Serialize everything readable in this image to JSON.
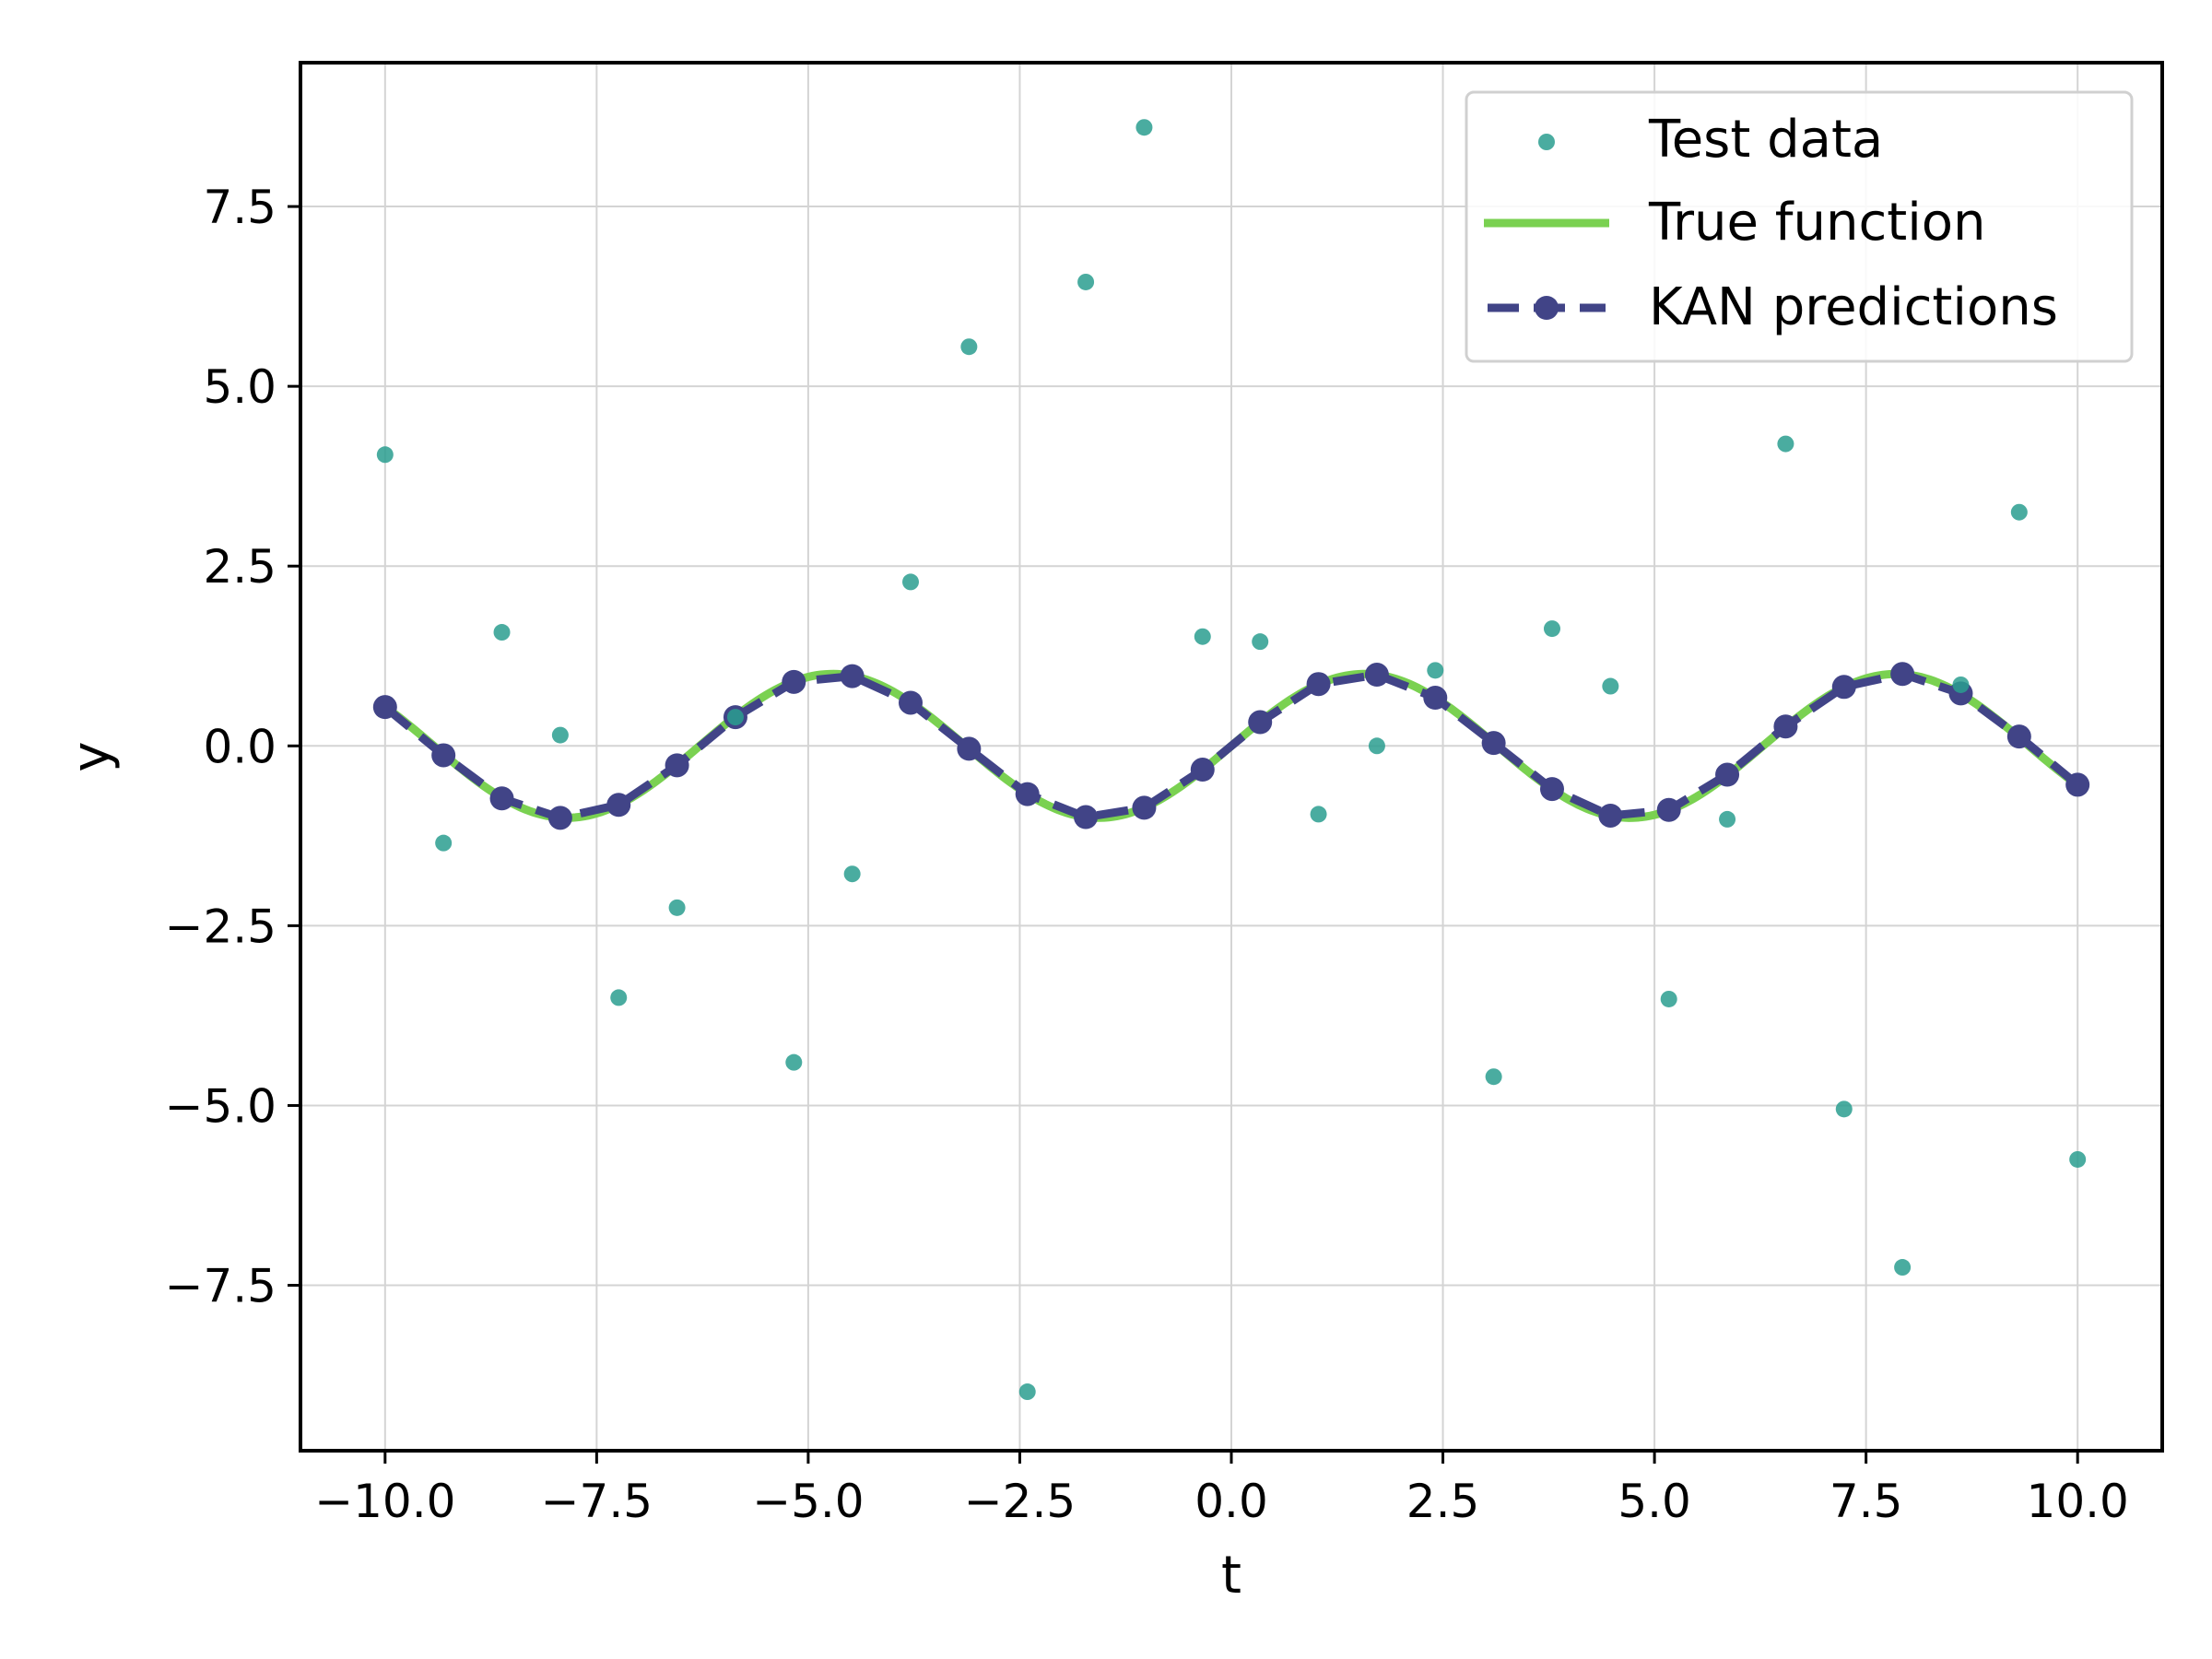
{
  "chart_data": {
    "type": "scatter",
    "title": "",
    "xlabel": "t",
    "ylabel": "y",
    "xlim": [
      -11,
      11
    ],
    "ylim": [
      -9.8,
      9.5
    ],
    "grid": true,
    "legend_position": "top-right",
    "xticks": [
      -10.0,
      -7.5,
      -5.0,
      -2.5,
      0.0,
      2.5,
      5.0,
      7.5,
      10.0
    ],
    "xtick_labels": [
      "−10.0",
      "−7.5",
      "−5.0",
      "−2.5",
      "0.0",
      "2.5",
      "5.0",
      "7.5",
      "10.0"
    ],
    "yticks": [
      7.5,
      5.0,
      2.5,
      0.0,
      -2.5,
      -5.0,
      -7.5
    ],
    "ytick_labels": [
      "7.5",
      "5.0",
      "2.5",
      "0.0",
      "−2.5",
      "−5.0",
      "−7.5"
    ],
    "series": [
      {
        "name": "Test data",
        "kind": "scatter",
        "color": "#2a9d8f",
        "x": [
          -10.0,
          -9.31,
          -8.62,
          -7.93,
          -7.24,
          -6.55,
          -5.86,
          -5.17,
          -4.48,
          -3.79,
          -3.1,
          -2.41,
          -1.72,
          -1.03,
          -0.34,
          0.34,
          1.03,
          1.72,
          2.41,
          3.1,
          3.79,
          4.48,
          5.17,
          5.86,
          6.55,
          7.24,
          7.93,
          8.62,
          9.31,
          10.0
        ],
        "y": [
          4.05,
          -1.35,
          1.58,
          0.15,
          -3.5,
          -2.25,
          0.4,
          -4.4,
          -1.78,
          2.28,
          5.55,
          -8.98,
          6.45,
          8.6,
          1.52,
          1.45,
          -0.95,
          0.0,
          1.05,
          -4.6,
          1.63,
          0.83,
          -3.52,
          -1.02,
          4.2,
          -5.05,
          -7.25,
          0.85,
          3.25,
          -5.75
        ]
      },
      {
        "name": "True function",
        "kind": "line",
        "color": "#7ad151",
        "function": "sin(t)",
        "x_range": [
          -10,
          10
        ]
      },
      {
        "name": "KAN predictions",
        "kind": "line-markers",
        "color": "#414487",
        "x": [
          -10.0,
          -9.31,
          -8.62,
          -7.93,
          -7.24,
          -6.55,
          -5.86,
          -5.17,
          -4.48,
          -3.79,
          -3.1,
          -2.41,
          -1.72,
          -1.03,
          -0.34,
          0.34,
          1.03,
          1.72,
          2.41,
          3.1,
          3.79,
          4.48,
          5.17,
          5.86,
          6.55,
          7.24,
          7.93,
          8.62,
          9.31,
          10.0
        ],
        "y": [
          0.54,
          -0.13,
          -0.73,
          -1.0,
          -0.82,
          -0.27,
          0.4,
          0.89,
          0.97,
          0.6,
          -0.04,
          -0.67,
          -0.99,
          -0.86,
          -0.33,
          0.33,
          0.86,
          0.99,
          0.67,
          0.04,
          -0.6,
          -0.97,
          -0.89,
          -0.4,
          0.27,
          0.82,
          1.0,
          0.73,
          0.13,
          -0.54
        ]
      }
    ]
  }
}
